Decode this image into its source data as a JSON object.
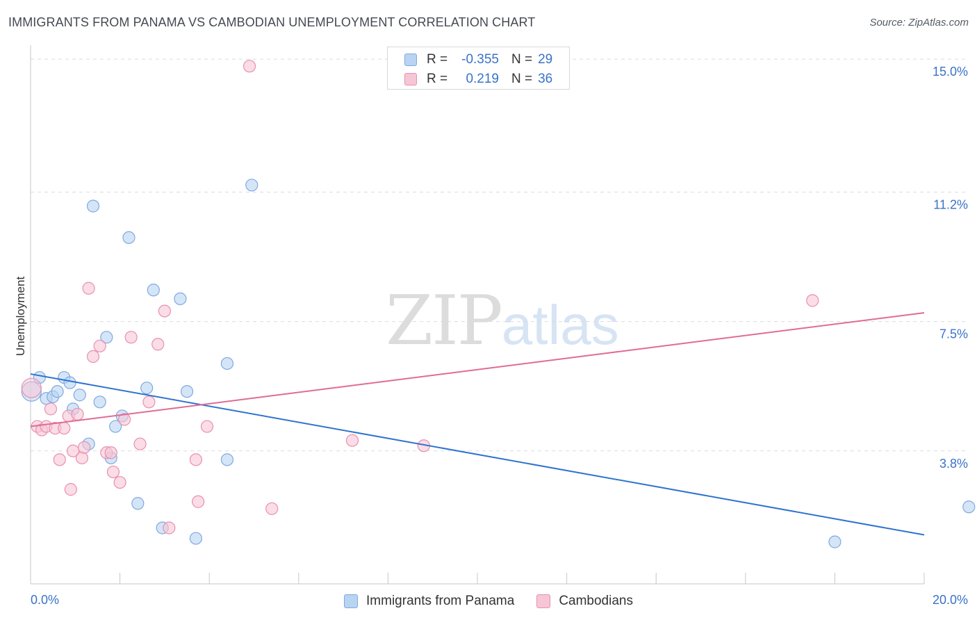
{
  "title": "IMMIGRANTS FROM PANAMA VS CAMBODIAN UNEMPLOYMENT CORRELATION CHART",
  "source": "Source: ZipAtlas.com",
  "watermark": {
    "zip": "ZIP",
    "atlas": "atlas"
  },
  "legend": [
    {
      "r_label": "R =",
      "r_value": "-0.355",
      "n_label": "N =",
      "n_value": "29"
    },
    {
      "r_label": "R =",
      "r_value": "0.219",
      "n_label": "N =",
      "n_value": "36"
    }
  ],
  "colors": {
    "blue_fill": "#b9d3f3",
    "blue_stroke": "#7ea9de",
    "blue_line": "#2e73cf",
    "pink_fill": "#f6c6d6",
    "pink_stroke": "#e98fb0",
    "pink_line": "#e06b96",
    "tick_label": "#3a72c8",
    "grid": "#d9dce0",
    "axis": "#c4c7cc"
  },
  "chart_data": {
    "type": "scatter",
    "title": "IMMIGRANTS FROM PANAMA VS CAMBODIAN UNEMPLOYMENT CORRELATION CHART",
    "xlabel": "",
    "ylabel": "Unemployment",
    "xlim": [
      0,
      20
    ],
    "ylim": [
      0,
      15.4
    ],
    "x_ticks": [
      0,
      20
    ],
    "x_tick_labels": [
      "0.0%",
      "20.0%"
    ],
    "y_ticks": [
      3.8,
      7.5,
      11.2,
      15.0
    ],
    "y_tick_labels": [
      "3.8%",
      "7.5%",
      "11.2%",
      "15.0%"
    ],
    "grid": true,
    "legend_position": "top-center",
    "series": [
      {
        "name": "Immigrants from Panama",
        "color": "blue",
        "r": -0.355,
        "n": 29,
        "trend": {
          "x": [
            0,
            20
          ],
          "y": [
            6.0,
            1.4
          ]
        },
        "points": [
          [
            0.02,
            5.5
          ],
          [
            0.2,
            5.9
          ],
          [
            0.35,
            5.3
          ],
          [
            0.5,
            5.35
          ],
          [
            0.6,
            5.5
          ],
          [
            0.75,
            5.9
          ],
          [
            0.88,
            5.75
          ],
          [
            0.95,
            5.0
          ],
          [
            1.1,
            5.4
          ],
          [
            1.3,
            4.0
          ],
          [
            1.4,
            10.8
          ],
          [
            1.55,
            5.2
          ],
          [
            1.7,
            7.05
          ],
          [
            1.8,
            3.6
          ],
          [
            1.9,
            4.5
          ],
          [
            2.05,
            4.8
          ],
          [
            2.2,
            9.9
          ],
          [
            2.4,
            2.3
          ],
          [
            2.6,
            5.6
          ],
          [
            2.75,
            8.4
          ],
          [
            2.95,
            1.6
          ],
          [
            3.35,
            8.15
          ],
          [
            3.5,
            5.5
          ],
          [
            3.7,
            1.3
          ],
          [
            4.4,
            6.3
          ],
          [
            4.4,
            3.55
          ],
          [
            4.95,
            11.4
          ],
          [
            18.0,
            1.2
          ],
          [
            21.0,
            2.2
          ]
        ]
      },
      {
        "name": "Cambodians",
        "color": "pink",
        "r": 0.219,
        "n": 36,
        "trend": {
          "x": [
            0,
            20
          ],
          "y": [
            4.5,
            7.75
          ]
        },
        "points": [
          [
            0.02,
            5.6
          ],
          [
            0.15,
            4.5
          ],
          [
            0.25,
            4.4
          ],
          [
            0.35,
            4.5
          ],
          [
            0.45,
            5.0
          ],
          [
            0.55,
            4.45
          ],
          [
            0.65,
            3.55
          ],
          [
            0.75,
            4.45
          ],
          [
            0.85,
            4.8
          ],
          [
            0.9,
            2.7
          ],
          [
            0.95,
            3.8
          ],
          [
            1.05,
            4.85
          ],
          [
            1.15,
            3.6
          ],
          [
            1.2,
            3.9
          ],
          [
            1.3,
            8.45
          ],
          [
            1.4,
            6.5
          ],
          [
            1.55,
            6.8
          ],
          [
            1.7,
            3.75
          ],
          [
            1.8,
            3.75
          ],
          [
            1.85,
            3.2
          ],
          [
            2.0,
            2.9
          ],
          [
            2.1,
            4.7
          ],
          [
            2.25,
            7.05
          ],
          [
            2.45,
            4.0
          ],
          [
            2.65,
            5.2
          ],
          [
            2.85,
            6.85
          ],
          [
            3.0,
            7.8
          ],
          [
            3.1,
            1.6
          ],
          [
            3.7,
            3.55
          ],
          [
            3.75,
            2.35
          ],
          [
            3.95,
            4.5
          ],
          [
            4.9,
            14.8
          ],
          [
            5.4,
            2.15
          ],
          [
            7.2,
            4.1
          ],
          [
            8.8,
            3.95
          ],
          [
            17.5,
            8.1
          ]
        ]
      }
    ]
  }
}
